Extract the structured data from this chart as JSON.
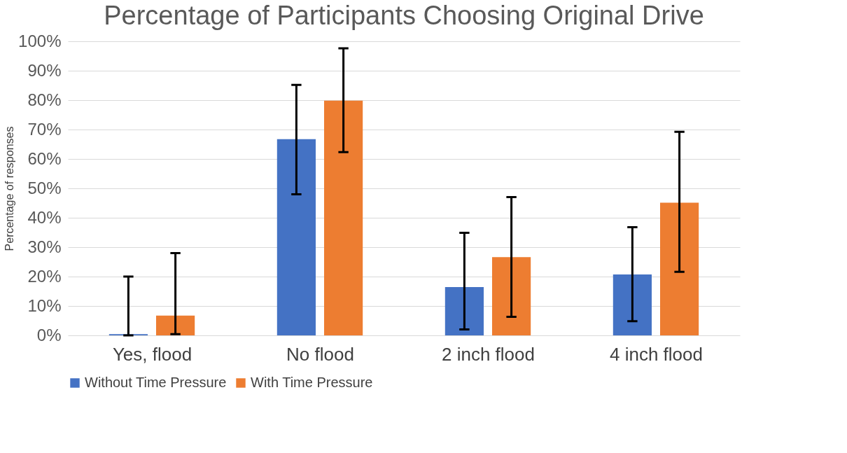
{
  "chart_data": {
    "type": "bar",
    "title": "Percentage of Participants Choosing Original Drive",
    "ylabel": "Percentage of responses",
    "categories": [
      "Yes, flood",
      "No flood",
      "2 inch flood",
      "4 inch flood"
    ],
    "series": [
      {
        "name": "Without Time Pressure",
        "color": "#4472c4",
        "values": [
          0.4,
          66.7,
          16.4,
          20.7
        ],
        "errors": [
          [
            0,
            20.0
          ],
          [
            48.0,
            85.2
          ],
          [
            2.0,
            34.9
          ],
          [
            4.8,
            36.8
          ]
        ]
      },
      {
        "name": "With Time Pressure",
        "color": "#ed7d31",
        "values": [
          6.7,
          79.8,
          26.6,
          45.1
        ],
        "errors": [
          [
            0.4,
            28.0
          ],
          [
            62.3,
            97.6
          ],
          [
            6.3,
            47.0
          ],
          [
            21.6,
            69.2
          ]
        ]
      }
    ],
    "ylim": [
      0,
      100
    ],
    "yticks": [
      {
        "value": 0,
        "label": "0%"
      },
      {
        "value": 10,
        "label": "10%"
      },
      {
        "value": 20,
        "label": "20%"
      },
      {
        "value": 30,
        "label": "30%"
      },
      {
        "value": 40,
        "label": "40%"
      },
      {
        "value": 50,
        "label": "50%"
      },
      {
        "value": 60,
        "label": "60%"
      },
      {
        "value": 70,
        "label": "70%"
      },
      {
        "value": 80,
        "label": "80%"
      },
      {
        "value": 90,
        "label": "90%"
      },
      {
        "value": 100,
        "label": "100%"
      }
    ],
    "grid": "y",
    "legend": "bottom"
  }
}
